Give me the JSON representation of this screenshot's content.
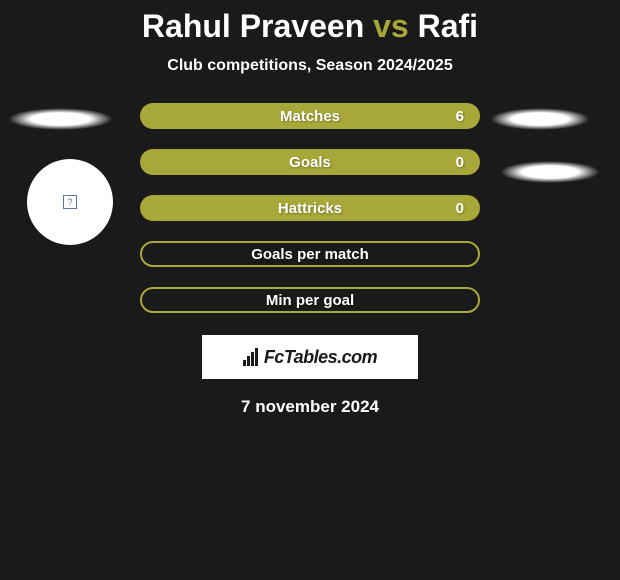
{
  "header": {
    "player1_name": "Rahul Praveen",
    "vs_text": "vs",
    "player2_name": "Rafi",
    "subtitle": "Club competitions, Season 2024/2025"
  },
  "stats": {
    "rows": [
      {
        "label": "Matches",
        "value": "6",
        "has_value": true
      },
      {
        "label": "Goals",
        "value": "0",
        "has_value": true
      },
      {
        "label": "Hattricks",
        "value": "0",
        "has_value": true
      },
      {
        "label": "Goals per match",
        "value": "",
        "has_value": false
      },
      {
        "label": "Min per goal",
        "value": "",
        "has_value": false
      }
    ]
  },
  "branding": {
    "logo_text": "FcTables.com"
  },
  "footer": {
    "date": "7 november 2024"
  },
  "colors": {
    "background": "#1a1a1a",
    "accent": "#a8a83a",
    "text_primary": "#ffffff"
  },
  "avatar": {
    "placeholder_glyph": "?"
  }
}
